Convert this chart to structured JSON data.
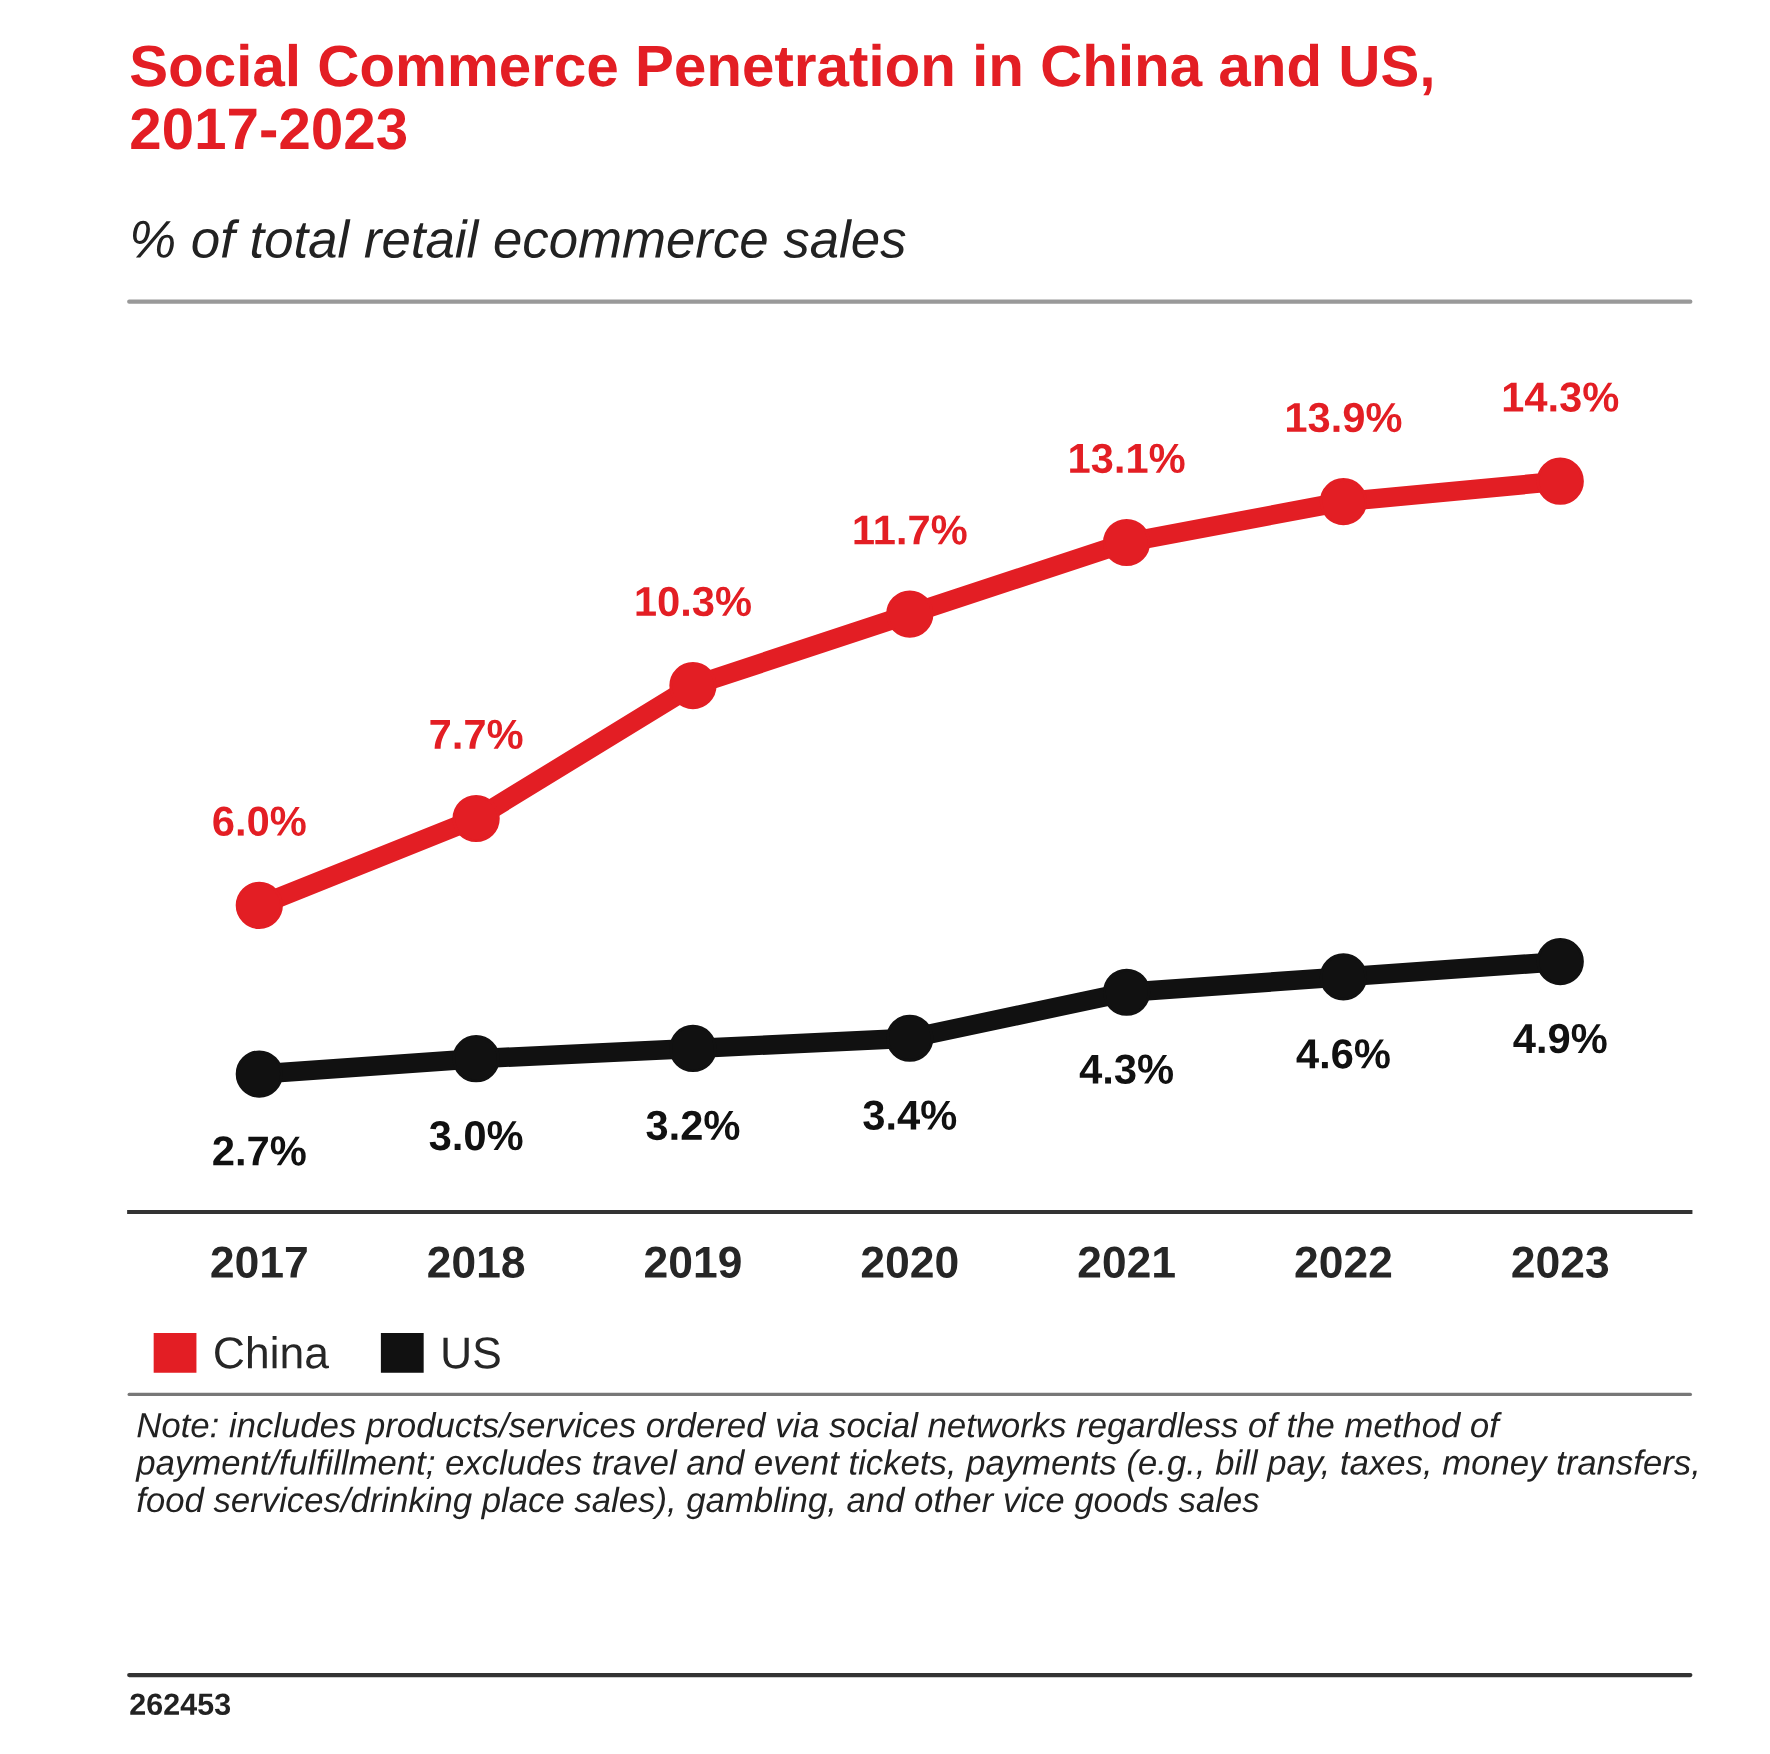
{
  "chart_data": {
    "type": "line",
    "title": "Social Commerce Penetration in China and US,\n2017-2023",
    "subtitle": "% of total retail ecommerce sales",
    "categories": [
      "2017",
      "2018",
      "2019",
      "2020",
      "2021",
      "2022",
      "2023"
    ],
    "series": [
      {
        "name": "China",
        "color": "#e31e24",
        "values": [
          6.0,
          7.7,
          10.3,
          11.7,
          13.1,
          13.9,
          14.3
        ],
        "value_labels": [
          "6.0%",
          "7.7%",
          "10.3%",
          "11.7%",
          "13.1%",
          "13.9%",
          "14.3%"
        ]
      },
      {
        "name": "US",
        "color": "#111111",
        "values": [
          2.7,
          3.0,
          3.2,
          3.4,
          4.3,
          4.6,
          4.9
        ],
        "value_labels": [
          "2.7%",
          "3.0%",
          "3.2%",
          "3.4%",
          "4.3%",
          "4.6%",
          "4.9%"
        ]
      }
    ],
    "marker": "circle",
    "line_style": "solid",
    "legend": "bottom left",
    "grid": false,
    "annotations": [
      "Note: includes products/services ordered via social networks regardless of the method of payment/fulfillment; excludes travel and event tickets, payments (e.g., bill pay, taxes, money transfers, food services/drinking place sales), gambling, and other vice goods sales",
      "262453"
    ]
  }
}
